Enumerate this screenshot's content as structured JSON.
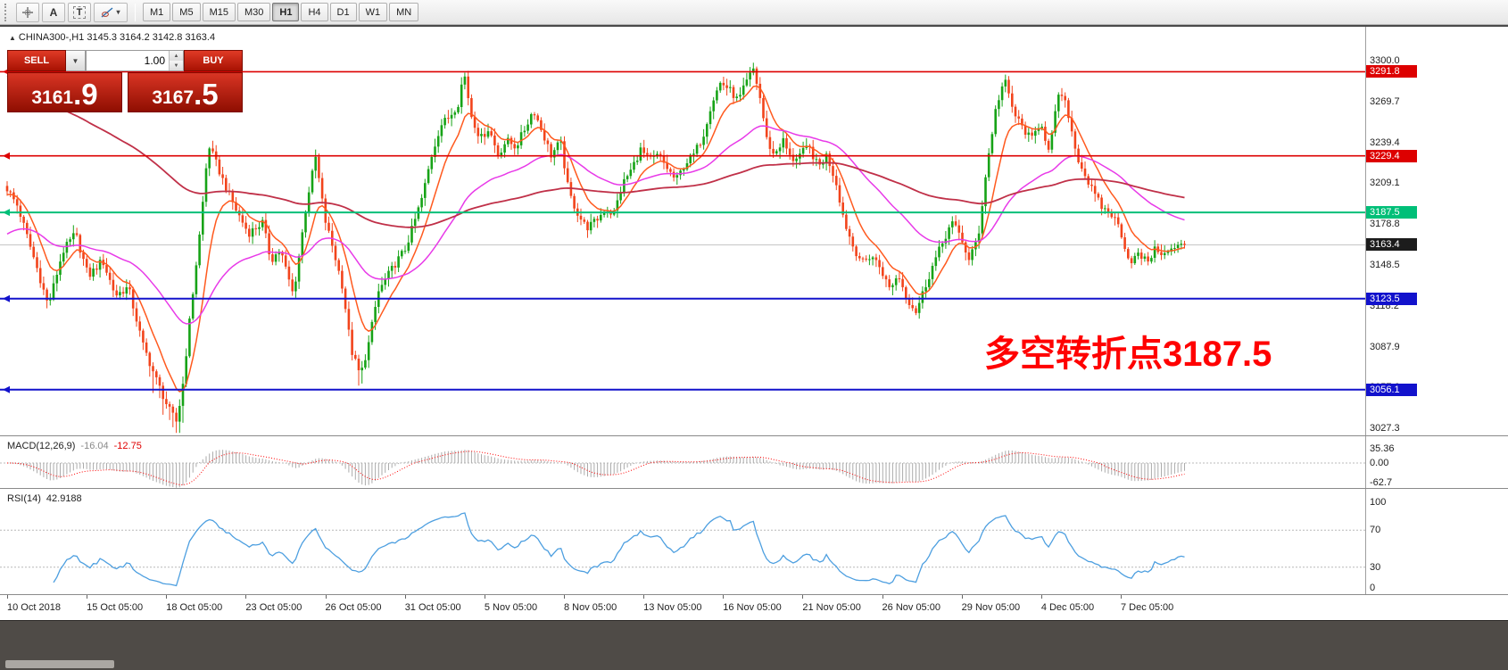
{
  "toolbar": {
    "tools": {
      "text_label": "A",
      "text_box": "T",
      "shapes_dropdown": "▾"
    },
    "timeframes": [
      {
        "label": "M1",
        "active": false
      },
      {
        "label": "M5",
        "active": false
      },
      {
        "label": "M15",
        "active": false
      },
      {
        "label": "M30",
        "active": false
      },
      {
        "label": "H1",
        "active": true
      },
      {
        "label": "H4",
        "active": false
      },
      {
        "label": "D1",
        "active": false
      },
      {
        "label": "W1",
        "active": false
      },
      {
        "label": "MN",
        "active": false
      }
    ]
  },
  "chart": {
    "symbol_info": "CHINA300-,H1  3145.3 3164.2 3142.8 3163.4",
    "trade_panel": {
      "sell_label": "SELL",
      "buy_label": "BUY",
      "volume": "1.00",
      "sell_price_big": "3161",
      "sell_price_sup": ".9",
      "buy_price_big": "3167",
      "buy_price_sup": ".5"
    },
    "annotation": {
      "text": "多空转折点3187.5",
      "color": "#ff0000"
    },
    "current_price": {
      "label": "3163.4",
      "value": 3163.4,
      "color": "#1c1c1c"
    },
    "hlines": [
      {
        "label": "3291.8",
        "price": 3291.8,
        "color": "#dd0000",
        "width": 1.6
      },
      {
        "label": "3229.4",
        "price": 3229.4,
        "color": "#dd0000",
        "width": 1.6
      },
      {
        "label": "3187.5",
        "price": 3187.5,
        "color": "#00bf78",
        "width": 2
      },
      {
        "label": "3123.5",
        "price": 3123.5,
        "color": "#1212cc",
        "width": 2
      },
      {
        "label": "3056.1",
        "price": 3056.1,
        "color": "#1212cc",
        "width": 2
      }
    ],
    "price_ticks": [
      {
        "label": "3300.0",
        "value": 3300.0
      },
      {
        "label": "3269.7",
        "value": 3269.7
      },
      {
        "label": "3239.4",
        "value": 3239.4
      },
      {
        "label": "3209.1",
        "value": 3209.1
      },
      {
        "label": "3178.8",
        "value": 3178.8
      },
      {
        "label": "3148.5",
        "value": 3148.5
      },
      {
        "label": "3118.2",
        "value": 3118.2
      },
      {
        "label": "3087.9",
        "value": 3087.9
      },
      {
        "label": "3057.6",
        "value": 3057.6
      },
      {
        "label": "3027.3",
        "value": 3027.3
      }
    ]
  },
  "macd_panel": {
    "name": "MACD(12,26,9)",
    "main_value": "-16.04",
    "signal_value": "-12.75",
    "axis": [
      {
        "label": "35.36",
        "value": 35.36
      },
      {
        "label": "0.00",
        "value": 0
      },
      {
        "label": "-62.7",
        "value": -62.7
      }
    ]
  },
  "rsi_panel": {
    "name": "RSI(14)",
    "value": "42.9188",
    "axis": [
      {
        "label": "100",
        "value": 100
      },
      {
        "label": "70",
        "value": 70
      },
      {
        "label": "30",
        "value": 30
      },
      {
        "label": "0",
        "value": 0
      }
    ],
    "levels": [
      70,
      30
    ]
  },
  "time_axis": {
    "labels": [
      "10 Oct 2018",
      "15 Oct 05:00",
      "18 Oct 05:00",
      "23 Oct 05:00",
      "26 Oct 05:00",
      "31 Oct 05:00",
      "5 Nov 05:00",
      "8 Nov 05:00",
      "13 Nov 05:00",
      "16 Nov 05:00",
      "21 Nov 05:00",
      "26 Nov 05:00",
      "29 Nov 05:00",
      "4 Dec 05:00",
      "7 Dec 05:00"
    ]
  },
  "chart_data": {
    "type": "candlestick",
    "title": "CHINA300- H1",
    "ohlc_last_line": {
      "open": 3145.3,
      "high": 3164.2,
      "low": 3142.8,
      "close": 3163.4
    },
    "y_axis_ticks": [
      3300.0,
      3269.7,
      3239.4,
      3209.1,
      3178.8,
      3148.5,
      3118.2,
      3087.9,
      3057.6,
      3027.3
    ],
    "y_range": [
      3022,
      3325
    ],
    "x_axis_labels": [
      "10 Oct 2018",
      "15 Oct 05:00",
      "18 Oct 05:00",
      "23 Oct 05:00",
      "26 Oct 05:00",
      "31 Oct 05:00",
      "5 Nov 05:00",
      "8 Nov 05:00",
      "13 Nov 05:00",
      "16 Nov 05:00",
      "21 Nov 05:00",
      "26 Nov 05:00",
      "29 Nov 05:00",
      "4 Dec 05:00",
      "7 Dec 05:00"
    ],
    "horizontal_levels": [
      3291.8,
      3229.4,
      3187.5,
      3123.5,
      3056.1
    ],
    "num_candles": 356,
    "up_color": "#17a317",
    "down_color": "#f2441c",
    "price_path_anchors": [
      [
        0.0,
        3205
      ],
      [
        0.009,
        3192
      ],
      [
        0.024,
        3150
      ],
      [
        0.035,
        3118
      ],
      [
        0.047,
        3158
      ],
      [
        0.058,
        3172
      ],
      [
        0.069,
        3140
      ],
      [
        0.081,
        3152
      ],
      [
        0.092,
        3126
      ],
      [
        0.103,
        3132
      ],
      [
        0.115,
        3090
      ],
      [
        0.126,
        3065
      ],
      [
        0.137,
        3042
      ],
      [
        0.144,
        3032
      ],
      [
        0.149,
        3058
      ],
      [
        0.156,
        3115
      ],
      [
        0.164,
        3175
      ],
      [
        0.171,
        3238
      ],
      [
        0.183,
        3212
      ],
      [
        0.194,
        3190
      ],
      [
        0.205,
        3172
      ],
      [
        0.217,
        3180
      ],
      [
        0.224,
        3152
      ],
      [
        0.232,
        3160
      ],
      [
        0.243,
        3126
      ],
      [
        0.255,
        3198
      ],
      [
        0.262,
        3228
      ],
      [
        0.27,
        3182
      ],
      [
        0.277,
        3160
      ],
      [
        0.285,
        3132
      ],
      [
        0.292,
        3086
      ],
      [
        0.3,
        3066
      ],
      [
        0.307,
        3090
      ],
      [
        0.315,
        3128
      ],
      [
        0.323,
        3140
      ],
      [
        0.33,
        3150
      ],
      [
        0.338,
        3160
      ],
      [
        0.345,
        3178
      ],
      [
        0.353,
        3200
      ],
      [
        0.36,
        3228
      ],
      [
        0.368,
        3252
      ],
      [
        0.375,
        3258
      ],
      [
        0.383,
        3268
      ],
      [
        0.388,
        3292
      ],
      [
        0.394,
        3260
      ],
      [
        0.402,
        3242
      ],
      [
        0.409,
        3250
      ],
      [
        0.417,
        3230
      ],
      [
        0.424,
        3241
      ],
      [
        0.432,
        3236
      ],
      [
        0.44,
        3250
      ],
      [
        0.447,
        3264
      ],
      [
        0.455,
        3246
      ],
      [
        0.462,
        3230
      ],
      [
        0.47,
        3240
      ],
      [
        0.477,
        3202
      ],
      [
        0.485,
        3186
      ],
      [
        0.492,
        3176
      ],
      [
        0.5,
        3181
      ],
      [
        0.508,
        3190
      ],
      [
        0.515,
        3186
      ],
      [
        0.523,
        3209
      ],
      [
        0.53,
        3219
      ],
      [
        0.538,
        3234
      ],
      [
        0.545,
        3226
      ],
      [
        0.553,
        3230
      ],
      [
        0.56,
        3221
      ],
      [
        0.568,
        3211
      ],
      [
        0.576,
        3224
      ],
      [
        0.583,
        3230
      ],
      [
        0.591,
        3244
      ],
      [
        0.598,
        3268
      ],
      [
        0.606,
        3284
      ],
      [
        0.613,
        3279
      ],
      [
        0.621,
        3270
      ],
      [
        0.628,
        3284
      ],
      [
        0.634,
        3294
      ],
      [
        0.64,
        3270
      ],
      [
        0.645,
        3242
      ],
      [
        0.651,
        3230
      ],
      [
        0.659,
        3241
      ],
      [
        0.666,
        3226
      ],
      [
        0.674,
        3231
      ],
      [
        0.681,
        3236
      ],
      [
        0.689,
        3221
      ],
      [
        0.696,
        3230
      ],
      [
        0.704,
        3210
      ],
      [
        0.711,
        3181
      ],
      [
        0.719,
        3161
      ],
      [
        0.727,
        3150
      ],
      [
        0.734,
        3156
      ],
      [
        0.742,
        3146
      ],
      [
        0.749,
        3131
      ],
      [
        0.757,
        3141
      ],
      [
        0.764,
        3124
      ],
      [
        0.772,
        3114
      ],
      [
        0.779,
        3131
      ],
      [
        0.787,
        3150
      ],
      [
        0.795,
        3166
      ],
      [
        0.802,
        3180
      ],
      [
        0.81,
        3170
      ],
      [
        0.817,
        3151
      ],
      [
        0.825,
        3171
      ],
      [
        0.832,
        3221
      ],
      [
        0.84,
        3266
      ],
      [
        0.847,
        3286
      ],
      [
        0.855,
        3261
      ],
      [
        0.862,
        3251
      ],
      [
        0.87,
        3241
      ],
      [
        0.878,
        3256
      ],
      [
        0.885,
        3231
      ],
      [
        0.893,
        3276
      ],
      [
        0.9,
        3266
      ],
      [
        0.908,
        3231
      ],
      [
        0.915,
        3216
      ],
      [
        0.923,
        3201
      ],
      [
        0.93,
        3191
      ],
      [
        0.938,
        3186
      ],
      [
        0.945,
        3176
      ],
      [
        0.953,
        3151
      ],
      [
        0.961,
        3156
      ],
      [
        0.968,
        3151
      ],
      [
        0.976,
        3161
      ],
      [
        0.983,
        3156
      ],
      [
        0.991,
        3161
      ],
      [
        1.0,
        3163.4
      ]
    ],
    "moving_averages": [
      {
        "name": "fast-ma",
        "period": 10,
        "color": "#ff5a1f",
        "seed": 3200
      },
      {
        "name": "mid-ma",
        "period": 45,
        "color": "#e83ae8",
        "seed": 3170
      },
      {
        "name": "slow-ma",
        "period": 160,
        "color": "#c03048",
        "seed": 3290
      }
    ],
    "indicators": [
      {
        "type": "MACD",
        "params": [
          12,
          26,
          9
        ],
        "last_main": -16.04,
        "last_signal": -12.75,
        "axis_range": [
          -69,
          58
        ],
        "histogram_color": "#ababab",
        "signal_color": "#ff0000"
      },
      {
        "type": "RSI",
        "params": [
          14
        ],
        "last": 42.9188,
        "levels": [
          70,
          30
        ],
        "axis_range": [
          0,
          100
        ],
        "line_color": "#4d9fe0"
      }
    ]
  }
}
